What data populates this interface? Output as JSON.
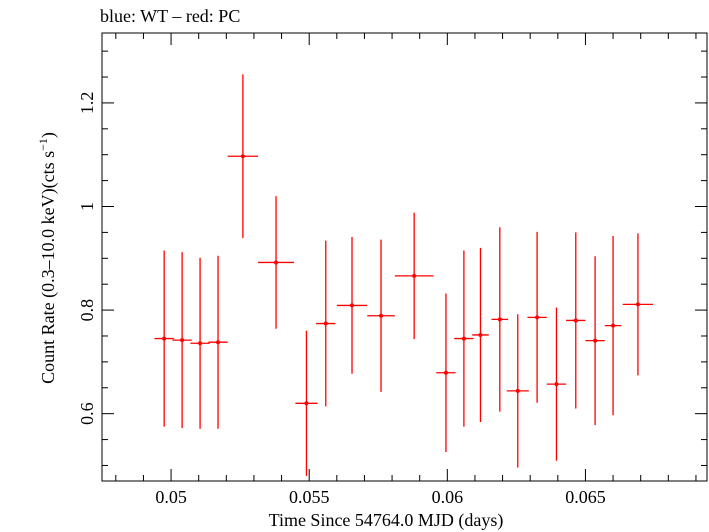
{
  "chart_data": {
    "type": "scatter",
    "title": "blue: WT – red: PC",
    "xlabel": "Time Since 54764.0 MJD (days)",
    "ylabel_main": "Count Rate (0.3–10.0 keV)(cts s",
    "ylabel_sup": "−1",
    "ylabel_end": ")",
    "xlim": [
      0.0475,
      0.0694
    ],
    "ylim": [
      0.47,
      1.335
    ],
    "x_ticks": [
      {
        "value": 0.05,
        "label": "0.05"
      },
      {
        "value": 0.055,
        "label": "0.055"
      },
      {
        "value": 0.06,
        "label": "0.06"
      },
      {
        "value": 0.065,
        "label": "0.065"
      }
    ],
    "y_ticks": [
      {
        "value": 0.6,
        "label": "0.6"
      },
      {
        "value": 0.8,
        "label": "0.8"
      },
      {
        "value": 1.0,
        "label": "1"
      },
      {
        "value": 1.2,
        "label": "1.2"
      }
    ],
    "series": [
      {
        "color": "#ff0000",
        "points": [
          {
            "x": 0.04975,
            "y": 0.745,
            "xerr": 0.00035,
            "yerr": 0.17
          },
          {
            "x": 0.0504,
            "y": 0.742,
            "xerr": 0.00035,
            "yerr": 0.17
          },
          {
            "x": 0.05105,
            "y": 0.736,
            "xerr": 0.00035,
            "yerr": 0.165
          },
          {
            "x": 0.0517,
            "y": 0.738,
            "xerr": 0.00035,
            "yerr": 0.167
          },
          {
            "x": 0.0526,
            "y": 1.097,
            "xerr": 0.00055,
            "yerr": 0.158
          },
          {
            "x": 0.0538,
            "y": 0.892,
            "xerr": 0.00065,
            "yerr": 0.128
          },
          {
            "x": 0.0549,
            "y": 0.62,
            "xerr": 0.0004,
            "yerr": 0.14
          },
          {
            "x": 0.0556,
            "y": 0.774,
            "xerr": 0.00035,
            "yerr": 0.16
          },
          {
            "x": 0.05655,
            "y": 0.809,
            "xerr": 0.00055,
            "yerr": 0.132
          },
          {
            "x": 0.0576,
            "y": 0.789,
            "xerr": 0.0005,
            "yerr": 0.147
          },
          {
            "x": 0.0588,
            "y": 0.866,
            "xerr": 0.0007,
            "yerr": 0.122
          },
          {
            "x": 0.05995,
            "y": 0.679,
            "xerr": 0.00035,
            "yerr": 0.153
          },
          {
            "x": 0.0606,
            "y": 0.745,
            "xerr": 0.00035,
            "yerr": 0.17
          },
          {
            "x": 0.0612,
            "y": 0.752,
            "xerr": 0.0003,
            "yerr": 0.168
          },
          {
            "x": 0.0619,
            "y": 0.782,
            "xerr": 0.0003,
            "yerr": 0.178
          },
          {
            "x": 0.06255,
            "y": 0.644,
            "xerr": 0.0004,
            "yerr": 0.148
          },
          {
            "x": 0.06325,
            "y": 0.786,
            "xerr": 0.00035,
            "yerr": 0.165
          },
          {
            "x": 0.06395,
            "y": 0.657,
            "xerr": 0.00035,
            "yerr": 0.148
          },
          {
            "x": 0.06465,
            "y": 0.78,
            "xerr": 0.00035,
            "yerr": 0.17
          },
          {
            "x": 0.06535,
            "y": 0.741,
            "xerr": 0.00035,
            "yerr": 0.163
          },
          {
            "x": 0.066,
            "y": 0.77,
            "xerr": 0.0003,
            "yerr": 0.173
          },
          {
            "x": 0.0669,
            "y": 0.811,
            "xerr": 0.00055,
            "yerr": 0.137
          }
        ]
      }
    ]
  }
}
